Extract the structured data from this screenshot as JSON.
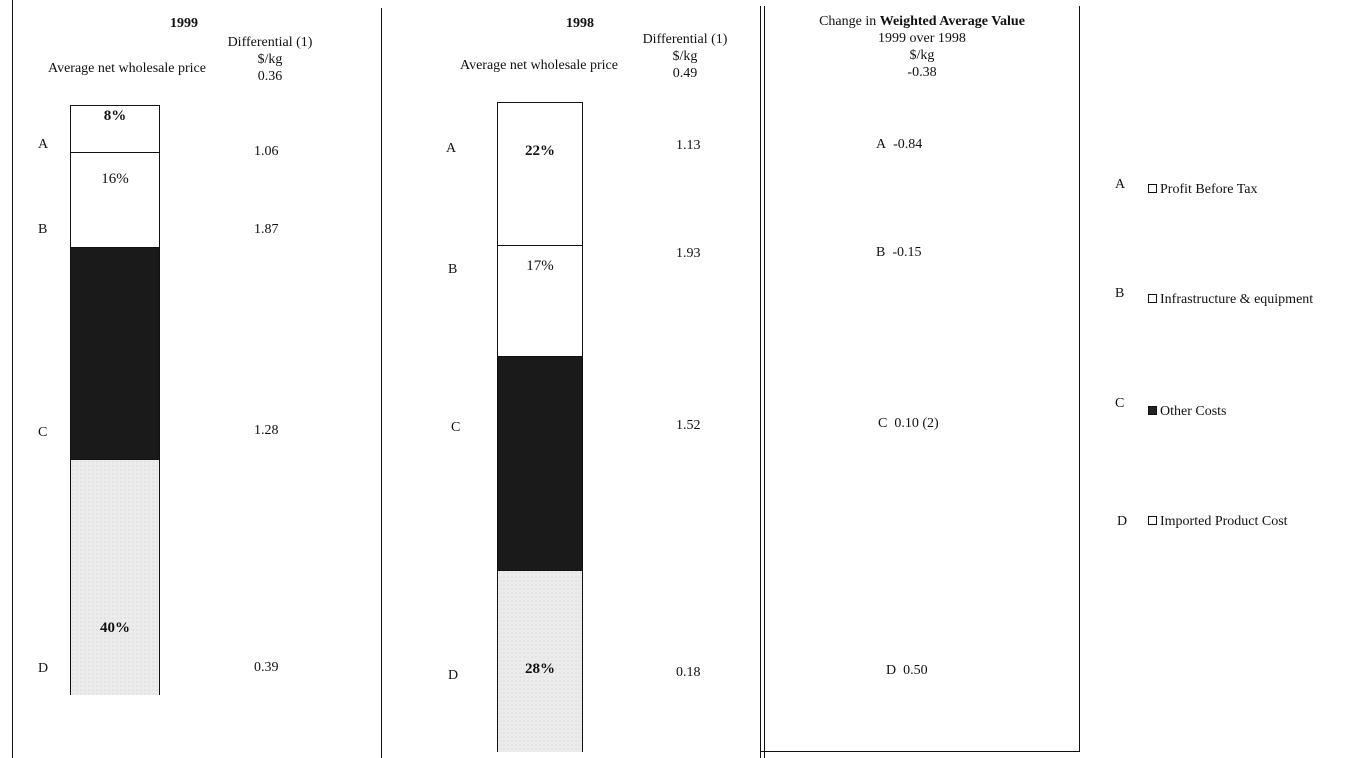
{
  "chart_data": {
    "type": "bar",
    "stacked": true,
    "layer_order_top_to_bottom": [
      "A",
      "B",
      "C",
      "D"
    ],
    "colors": {
      "A": "#ffffff",
      "B": "#ffffff",
      "C": "#1a1a1a",
      "D": "#ececec"
    },
    "panels": [
      {
        "title": "1999",
        "bar_label": "Average net wholesale price",
        "diff_header": "Differential (1)",
        "diff_unit": "$/kg",
        "diff_top": "0.36",
        "segments": [
          {
            "label": "A",
            "percent": 8,
            "percent_text": "8%",
            "differential": "1.06"
          },
          {
            "label": "B",
            "percent": 16,
            "percent_text": "16%",
            "differential": "1.87"
          },
          {
            "label": "C",
            "percent": 36,
            "percent_text": "",
            "differential": "1.28"
          },
          {
            "label": "D",
            "percent": 40,
            "percent_text": "40%",
            "differential": "0.39"
          }
        ]
      },
      {
        "title": "1998",
        "bar_label": "Average net wholesale price",
        "diff_header": "Differential (1)",
        "diff_unit": "$/kg",
        "diff_top": "0.49",
        "segments": [
          {
            "label": "A",
            "percent": 22,
            "percent_text": "22%",
            "differential": "1.13"
          },
          {
            "label": "B",
            "percent": 17,
            "percent_text": "17%",
            "differential": "1.93"
          },
          {
            "label": "C",
            "percent": 33,
            "percent_text": "",
            "differential": "1.52"
          },
          {
            "label": "D",
            "percent": 28,
            "percent_text": "28%",
            "differential": "0.18"
          }
        ]
      }
    ],
    "change": {
      "title_prefix": "Change in",
      "title_bold": "Weighted Average Value",
      "subtitle": "1999 over 1998",
      "unit": "$/kg",
      "total": "-0.38",
      "rows": [
        {
          "label": "A",
          "value": "-0.84"
        },
        {
          "label": "B",
          "value": "-0.15"
        },
        {
          "label": "C",
          "value": "0.10 (2)"
        },
        {
          "label": "D",
          "value": "0.50"
        }
      ]
    },
    "legend": [
      {
        "label": "A",
        "name": "Profit Before Tax",
        "swatch": "white"
      },
      {
        "label": "B",
        "name": "Infrastructure & equipment",
        "swatch": "white"
      },
      {
        "label": "C",
        "name": "Other Costs",
        "swatch": "dark"
      },
      {
        "label": "D",
        "name": "Imported Product Cost",
        "swatch": "white"
      }
    ]
  }
}
